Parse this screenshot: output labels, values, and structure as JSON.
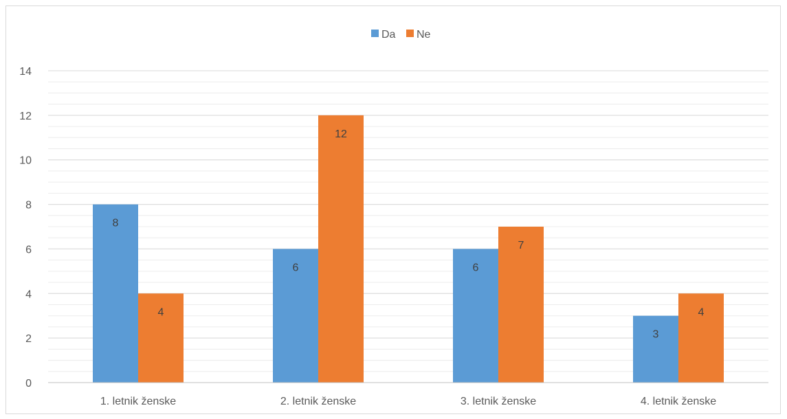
{
  "chart_data": {
    "type": "bar",
    "categories": [
      "1. letnik ženske",
      "2. letnik ženske",
      "3. letnik ženske",
      "4. letnik ženske"
    ],
    "series": [
      {
        "name": "Da",
        "values": [
          8,
          6,
          6,
          3
        ],
        "color": "#5B9BD5"
      },
      {
        "name": "Ne",
        "values": [
          4,
          12,
          7,
          4
        ],
        "color": "#ED7D31"
      }
    ],
    "title": "",
    "xlabel": "",
    "ylabel": "",
    "ylim": [
      0,
      14
    ],
    "yticks": [
      0,
      2,
      4,
      6,
      8,
      10,
      12,
      14
    ],
    "minor_step": 0.5,
    "data_labels": true,
    "grid": true,
    "legend_position": "top"
  }
}
